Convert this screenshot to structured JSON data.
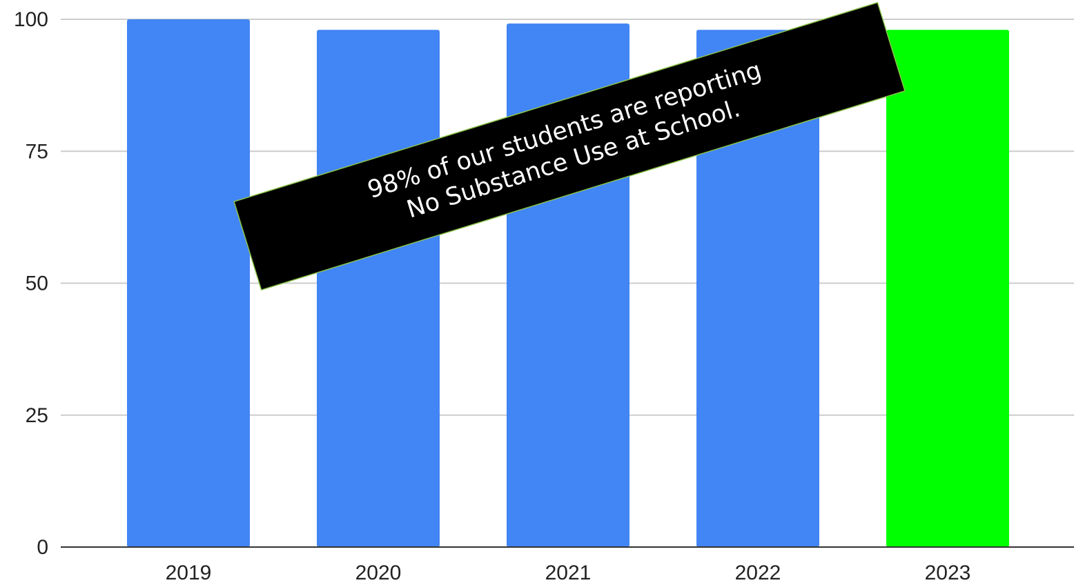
{
  "chart_data": {
    "type": "bar",
    "categories": [
      "2019",
      "2020",
      "2021",
      "2022",
      "2023"
    ],
    "values": [
      100,
      98,
      99.2,
      98,
      98
    ],
    "bar_colors": [
      "#4285f4",
      "#4285f4",
      "#4285f4",
      "#4285f4",
      "#00ff00"
    ],
    "title": "",
    "xlabel": "",
    "ylabel": "",
    "ylim": [
      0,
      100
    ],
    "yticks": [
      0,
      25,
      50,
      75,
      100
    ],
    "grid": true,
    "gridline_color": "#cccccc",
    "axis_color": "#333333",
    "annotation": {
      "lines": [
        "98% of our students are reporting",
        "No Substance Use at School."
      ],
      "background": "#000000",
      "border_color": "#8bc34a",
      "text_color": "#ffffff"
    }
  }
}
